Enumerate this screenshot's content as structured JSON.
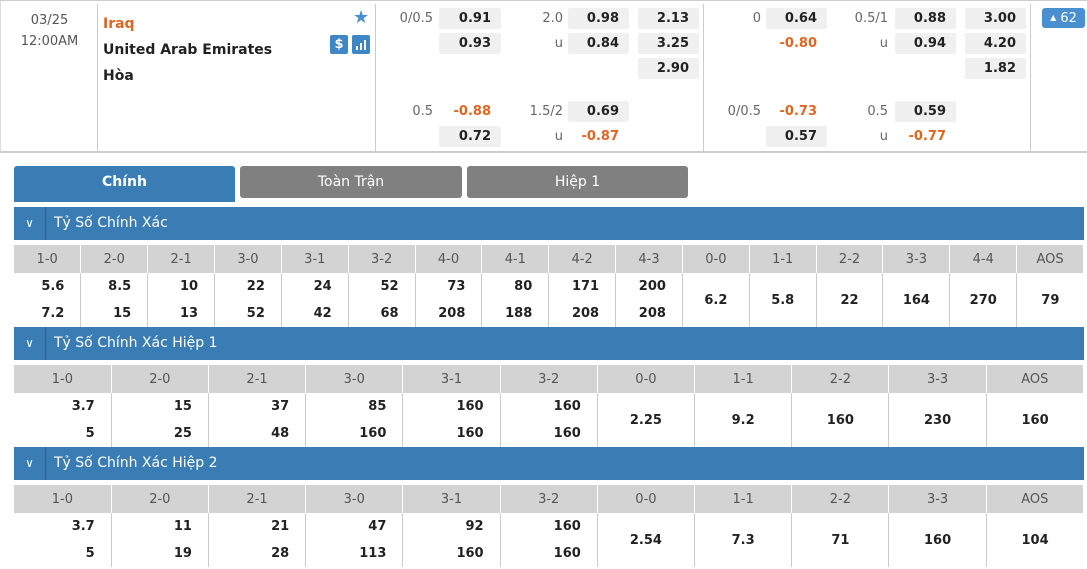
{
  "match": {
    "date": "03/25",
    "time": "12:00AM",
    "home": "Iraq",
    "away": "United Arab Emirates",
    "draw": "Hòa",
    "more_count": "62",
    "icons": [
      "star-icon",
      "dollar-icon",
      "stats-icon"
    ]
  },
  "odds_ft": {
    "row1": [
      {
        "l": "0/0.5",
        "v": "0.91"
      },
      {
        "l": "2.0",
        "v": "0.98"
      },
      {
        "v": "2.13"
      }
    ],
    "row2": [
      {
        "v": "0.93"
      },
      {
        "l": "u",
        "v": "0.84"
      },
      {
        "v": "3.25"
      }
    ],
    "row3": [
      {
        "v": "2.90"
      }
    ],
    "row4": [
      {
        "l": "0.5",
        "v": "-0.88"
      },
      {
        "l": "1.5/2",
        "v": "0.69"
      }
    ],
    "row5": [
      {
        "v": "0.72"
      },
      {
        "l": "u",
        "v": "-0.87"
      }
    ]
  },
  "odds_h1": {
    "row1": [
      {
        "l": "0",
        "v": "0.64"
      },
      {
        "l": "0.5/1",
        "v": "0.88"
      },
      {
        "v": "3.00"
      }
    ],
    "row2": [
      {
        "v": "-0.80"
      },
      {
        "l": "u",
        "v": "0.94"
      },
      {
        "v": "4.20"
      }
    ],
    "row3": [
      {
        "v": "1.82"
      }
    ],
    "row4": [
      {
        "l": "0/0.5",
        "v": "-0.73"
      },
      {
        "l": "0.5",
        "v": "0.59"
      }
    ],
    "row5": [
      {
        "v": "0.57"
      },
      {
        "l": "u",
        "v": "-0.77"
      }
    ]
  },
  "tabs": [
    "Chính",
    "Toàn Trận",
    "Hiệp 1"
  ],
  "colors": {
    "accent": "#3a7db5",
    "negative": "#e0651f",
    "tab_inactive": "#808080"
  },
  "sections": [
    {
      "title": "Tỷ Số Chính Xác",
      "headers": [
        "1-0",
        "2-0",
        "2-1",
        "3-0",
        "3-1",
        "3-2",
        "4-0",
        "4-1",
        "4-2",
        "4-3",
        "0-0",
        "1-1",
        "2-2",
        "3-3",
        "4-4",
        "AOS"
      ],
      "home": [
        "5.6",
        "8.5",
        "10",
        "22",
        "24",
        "52",
        "73",
        "80",
        "171",
        "200"
      ],
      "away": [
        "7.2",
        "15",
        "13",
        "52",
        "42",
        "68",
        "208",
        "188",
        "208",
        "208"
      ],
      "single": [
        "6.2",
        "5.8",
        "22",
        "164",
        "270",
        "79"
      ]
    },
    {
      "title": "Tỷ Số Chính Xác Hiệp 1",
      "headers": [
        "1-0",
        "2-0",
        "2-1",
        "3-0",
        "3-1",
        "3-2",
        "0-0",
        "1-1",
        "2-2",
        "3-3",
        "AOS"
      ],
      "home": [
        "3.7",
        "15",
        "37",
        "85",
        "160",
        "160"
      ],
      "away": [
        "5",
        "25",
        "48",
        "160",
        "160",
        "160"
      ],
      "single": [
        "2.25",
        "9.2",
        "160",
        "230",
        "160"
      ]
    },
    {
      "title": "Tỷ Số Chính Xác Hiệp 2",
      "headers": [
        "1-0",
        "2-0",
        "2-1",
        "3-0",
        "3-1",
        "3-2",
        "0-0",
        "1-1",
        "2-2",
        "3-3",
        "AOS"
      ],
      "home": [
        "3.7",
        "11",
        "21",
        "47",
        "92",
        "160"
      ],
      "away": [
        "5",
        "19",
        "28",
        "113",
        "160",
        "160"
      ],
      "single": [
        "2.54",
        "7.3",
        "71",
        "160",
        "104"
      ]
    }
  ]
}
